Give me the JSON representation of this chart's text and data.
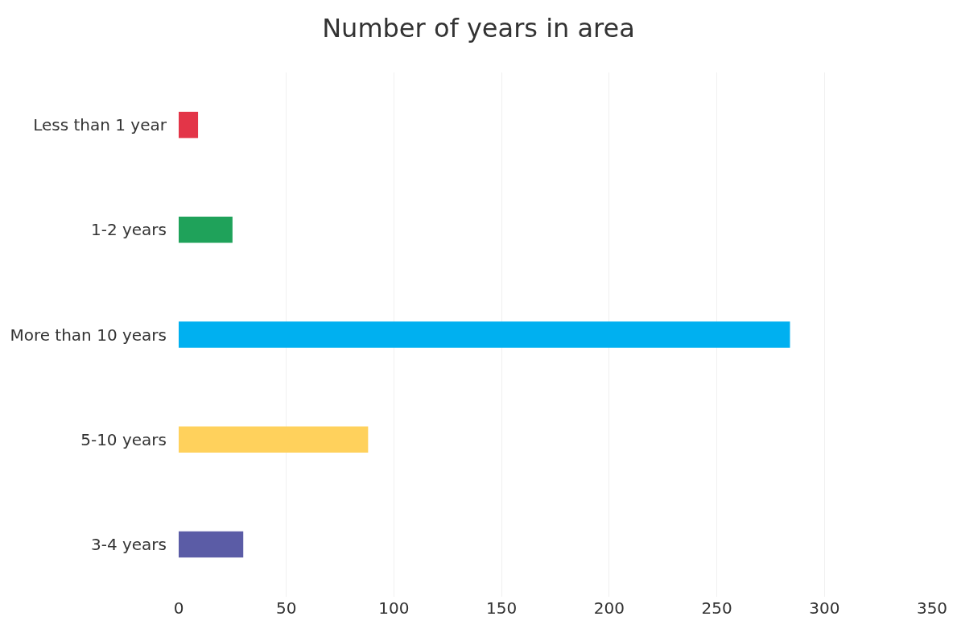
{
  "chart_data": {
    "type": "bar",
    "title": "Number of years in area",
    "orientation": "horizontal",
    "categories": [
      "Less than 1 year",
      "1-2 years",
      "More than 10 years",
      "5-10 years",
      "3-4 years"
    ],
    "values": [
      9,
      25,
      284,
      88,
      30
    ],
    "colors": [
      "#e33548",
      "#1fa25a",
      "#00b0f0",
      "#ffd15c",
      "#5b5ca6"
    ],
    "xlim": [
      0,
      350
    ],
    "xticks": [
      0,
      50,
      100,
      150,
      200,
      250,
      300,
      350
    ],
    "grid": "x"
  }
}
